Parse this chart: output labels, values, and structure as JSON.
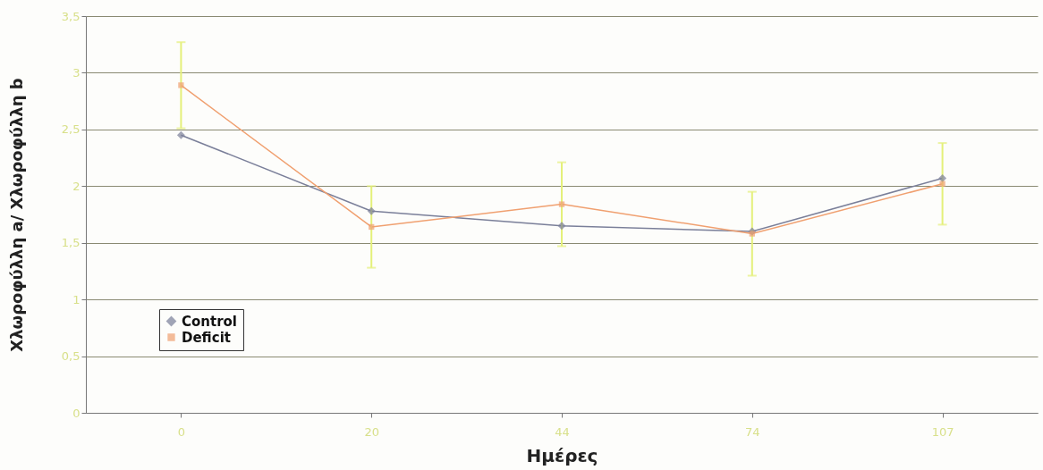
{
  "chart_data": {
    "type": "line",
    "xlabel": "Ημέρες",
    "ylabel": "Χλωροφύλλη a/ Χλωροφύλλη b",
    "categories": [
      "0",
      "20",
      "44",
      "74",
      "107"
    ],
    "series": [
      {
        "name": "Control",
        "color": "#7a7f99",
        "marker": "diamond",
        "values": [
          2.45,
          1.78,
          1.65,
          1.6,
          2.07
        ]
      },
      {
        "name": "Deficit",
        "color": "#f0a070",
        "marker": "square",
        "values": [
          2.89,
          1.64,
          1.84,
          1.58,
          2.02
        ],
        "errors": [
          0.38,
          0.36,
          0.37,
          0.37,
          0.36
        ]
      }
    ],
    "ylim": [
      0,
      3.5
    ],
    "yticks": [
      {
        "value": 0,
        "label": "0"
      },
      {
        "value": 0.5,
        "label": "0,5"
      },
      {
        "value": 1,
        "label": "1"
      },
      {
        "value": 1.5,
        "label": "1,5"
      },
      {
        "value": 2,
        "label": "2"
      },
      {
        "value": 2.5,
        "label": "2,5"
      },
      {
        "value": 3,
        "label": "3"
      },
      {
        "value": 3.5,
        "label": "3,5"
      }
    ],
    "grid": "y",
    "legend": "bottom left"
  }
}
